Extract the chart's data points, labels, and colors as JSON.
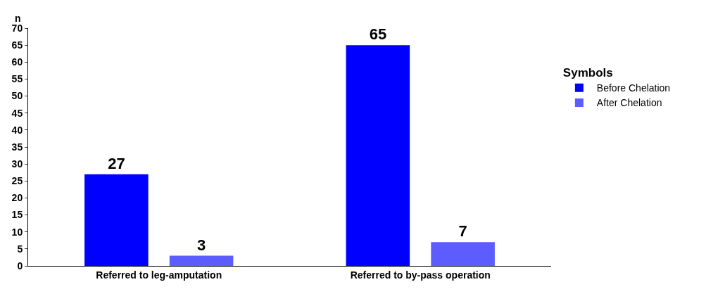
{
  "chart_data": {
    "type": "bar",
    "ylabel": "n",
    "legend_title": "Symbols",
    "categories": [
      "Referred to leg-amputation",
      "Referred to by-pass operation"
    ],
    "series": [
      {
        "name": "Before Chelation",
        "color": "#0000ff",
        "values": [
          27,
          65
        ]
      },
      {
        "name": "After Chelation",
        "color": "#5c5cff",
        "values": [
          3,
          7
        ]
      }
    ],
    "ylim": [
      0,
      70
    ],
    "yticks": [
      0,
      5,
      10,
      15,
      20,
      25,
      30,
      35,
      40,
      45,
      50,
      55,
      60,
      65,
      70
    ],
    "data_labels": true,
    "legend": "right"
  }
}
